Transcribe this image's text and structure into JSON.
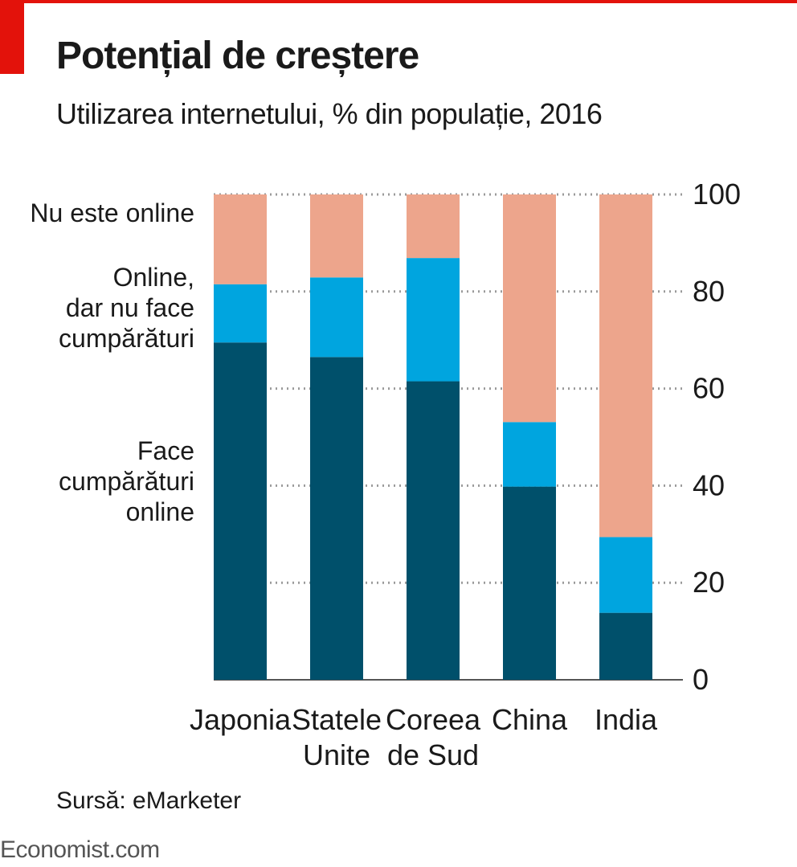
{
  "header": {
    "title": "Potențial de creștere",
    "subtitle": "Utilizarea internetului, % din populație, 2016"
  },
  "footer": {
    "source": "Sursă: eMarketer",
    "brand": "Economist.com"
  },
  "colors": {
    "accent": "#e3120b",
    "shopping": "#00506b",
    "online_no_shopping": "#00a5df",
    "not_online": "#eda58c",
    "grid": "#9a9a9a",
    "text": "#1a1a1a"
  },
  "chart_data": {
    "type": "bar",
    "stacked": true,
    "orientation": "vertical",
    "categories": [
      [
        "Japonia"
      ],
      [
        "Statele",
        "Unite"
      ],
      [
        "Coreea",
        "de Sud"
      ],
      [
        "China"
      ],
      [
        "India"
      ]
    ],
    "series": [
      {
        "name": [
          "Face",
          "cumpărături",
          "online"
        ],
        "values": [
          69.5,
          66.5,
          61.5,
          39.8,
          13.8
        ]
      },
      {
        "name": [
          "Online,",
          "dar nu face",
          "cumpărături"
        ],
        "values": [
          12.0,
          16.4,
          25.4,
          13.3,
          15.6
        ]
      },
      {
        "name": [
          "Nu este online"
        ],
        "values": [
          18.5,
          17.1,
          13.1,
          46.9,
          70.6
        ]
      }
    ],
    "y_ticks": [
      0,
      20,
      40,
      60,
      80,
      100
    ],
    "ylim": [
      0,
      100
    ],
    "y_axis_side": "right",
    "grid": "dotted horizontal",
    "legend": "left, labels beside Japonia bar"
  }
}
